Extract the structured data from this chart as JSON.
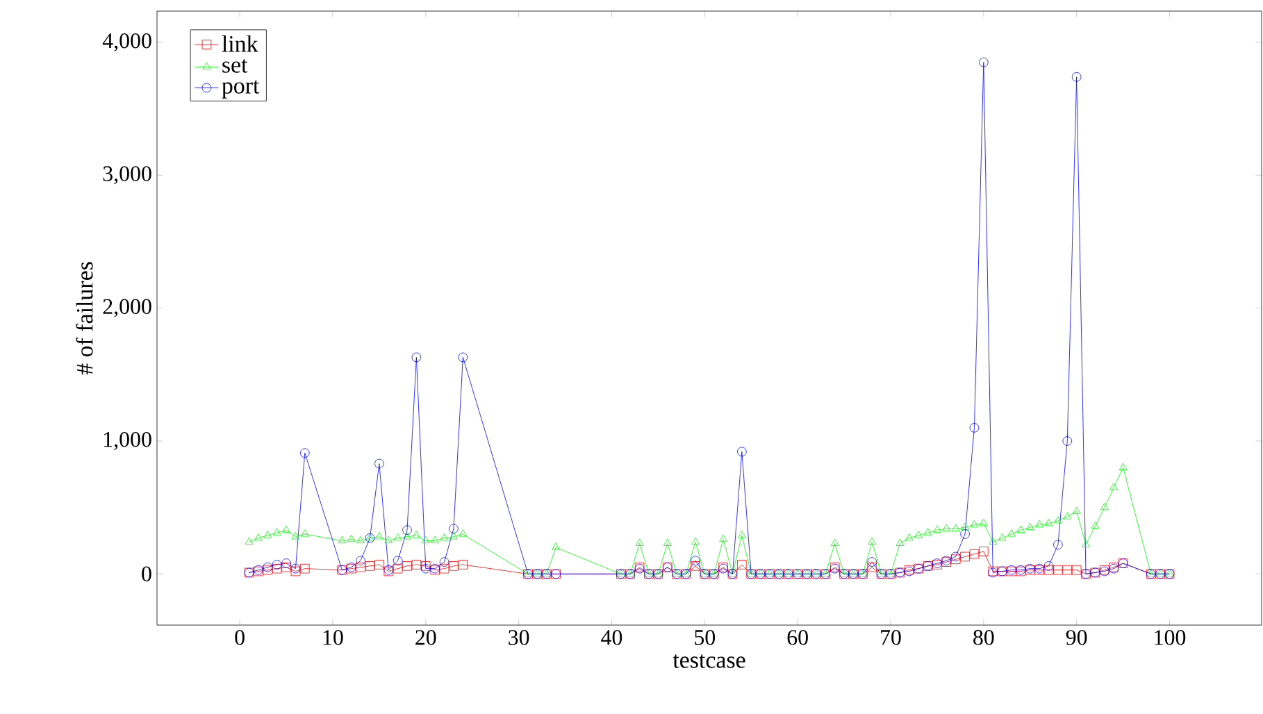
{
  "chart_data": {
    "type": "line",
    "xlabel": "testcase",
    "ylabel": "# of failures",
    "x": [
      1,
      2,
      3,
      4,
      5,
      6,
      7,
      11,
      12,
      13,
      14,
      15,
      16,
      17,
      18,
      19,
      20,
      21,
      22,
      23,
      24,
      31,
      32,
      33,
      34,
      41,
      42,
      43,
      44,
      45,
      46,
      47,
      48,
      49,
      50,
      51,
      52,
      53,
      54,
      55,
      56,
      57,
      58,
      59,
      60,
      61,
      62,
      63,
      64,
      65,
      66,
      67,
      68,
      69,
      70,
      71,
      72,
      73,
      74,
      75,
      76,
      77,
      78,
      79,
      80,
      81,
      82,
      83,
      84,
      85,
      86,
      87,
      88,
      89,
      90,
      91,
      92,
      93,
      94,
      95,
      98,
      99,
      100
    ],
    "series": [
      {
        "name": "link",
        "color": "#ff0000",
        "marker": "square",
        "values": [
          10,
          20,
          30,
          40,
          50,
          20,
          40,
          30,
          40,
          50,
          60,
          70,
          20,
          40,
          60,
          70,
          60,
          30,
          40,
          60,
          70,
          0,
          0,
          0,
          0,
          0,
          0,
          50,
          0,
          0,
          50,
          0,
          0,
          60,
          0,
          0,
          50,
          0,
          70,
          0,
          0,
          0,
          0,
          0,
          0,
          0,
          0,
          0,
          50,
          0,
          0,
          0,
          50,
          0,
          0,
          10,
          30,
          40,
          60,
          70,
          90,
          110,
          130,
          150,
          170,
          20,
          20,
          20,
          20,
          30,
          30,
          30,
          30,
          30,
          30,
          0,
          10,
          30,
          50,
          80,
          0,
          0,
          0
        ]
      },
      {
        "name": "set",
        "color": "#00ff00",
        "marker": "triangle",
        "values": [
          240,
          270,
          290,
          310,
          330,
          280,
          300,
          250,
          260,
          250,
          270,
          280,
          250,
          270,
          280,
          290,
          250,
          250,
          270,
          280,
          300,
          0,
          0,
          0,
          200,
          0,
          0,
          230,
          0,
          0,
          230,
          0,
          0,
          240,
          0,
          0,
          260,
          0,
          290,
          0,
          0,
          0,
          0,
          0,
          0,
          0,
          0,
          0,
          230,
          0,
          0,
          0,
          240,
          0,
          0,
          230,
          270,
          290,
          310,
          330,
          340,
          340,
          350,
          370,
          380,
          240,
          270,
          300,
          330,
          350,
          370,
          380,
          400,
          430,
          470,
          220,
          360,
          500,
          650,
          800,
          0,
          0,
          0
        ]
      },
      {
        "name": "port",
        "color": "#0000ff",
        "marker": "circle",
        "values": [
          10,
          30,
          50,
          70,
          80,
          40,
          910,
          30,
          50,
          100,
          270,
          830,
          30,
          100,
          330,
          1630,
          40,
          40,
          90,
          340,
          1630,
          0,
          0,
          0,
          0,
          0,
          0,
          40,
          0,
          0,
          50,
          0,
          0,
          100,
          0,
          0,
          40,
          0,
          920,
          0,
          0,
          0,
          0,
          0,
          0,
          0,
          0,
          0,
          40,
          0,
          0,
          0,
          90,
          0,
          0,
          10,
          20,
          40,
          60,
          80,
          100,
          130,
          300,
          1100,
          3850,
          10,
          20,
          30,
          30,
          40,
          40,
          60,
          220,
          1000,
          3740,
          0,
          10,
          20,
          40,
          80,
          0,
          0,
          0
        ]
      }
    ],
    "xlim": [
      -8.9,
      109.9
    ],
    "ylim": [
      -385,
      4235
    ],
    "xticks": [
      0,
      10,
      20,
      30,
      40,
      50,
      60,
      70,
      80,
      90,
      100
    ],
    "yticks": [
      0,
      {
        "value": 1000,
        "label": "1,000"
      },
      {
        "value": 2000,
        "label": "2,000"
      },
      {
        "value": 3000,
        "label": "3,000"
      },
      {
        "value": 4000,
        "label": "4,000"
      }
    ],
    "grid": false,
    "legend": "top left",
    "line_style": "solid"
  }
}
